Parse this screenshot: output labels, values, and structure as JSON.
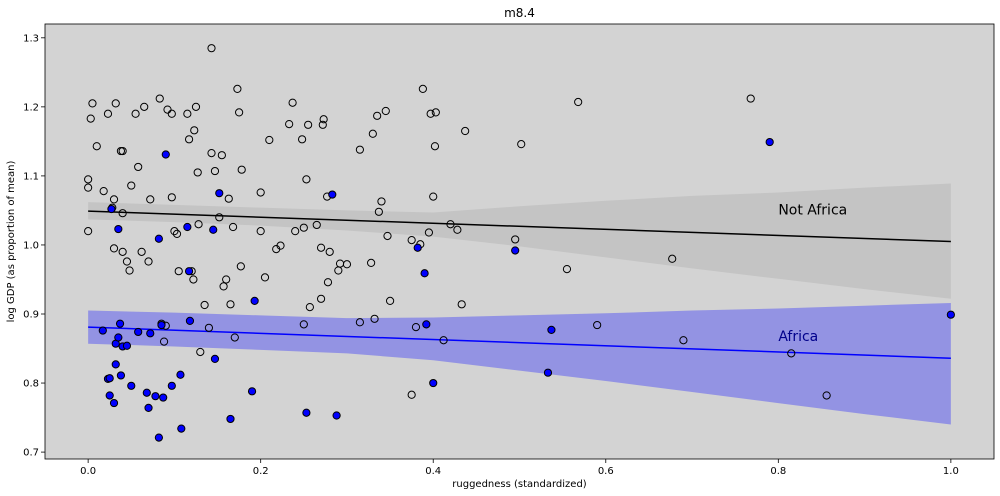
{
  "chart_data": {
    "type": "scatter",
    "title": "m8.4",
    "xlabel": "ruggedness (standardized)",
    "ylabel": "log GDP (as proportion of mean)",
    "xlim": [
      -0.05,
      1.05
    ],
    "ylim": [
      0.69,
      1.32
    ],
    "xticks": [
      "0.0",
      "0.2",
      "0.4",
      "0.6",
      "0.8",
      "1.0"
    ],
    "xtick_values": [
      0.0,
      0.2,
      0.4,
      0.6,
      0.8,
      1.0
    ],
    "yticks": [
      "0.7",
      "0.8",
      "0.9",
      "1.0",
      "1.1",
      "1.2",
      "1.3"
    ],
    "ytick_values": [
      0.7,
      0.8,
      0.9,
      1.0,
      1.1,
      1.2,
      1.3
    ],
    "grid": false,
    "background_color": "#d3d3d3",
    "series": [
      {
        "name": "Not Africa",
        "marker": "open-circle",
        "color": "#000000",
        "line": {
          "x": [
            0.0,
            1.0
          ],
          "y": [
            1.049,
            1.005
          ]
        },
        "band": {
          "x": [
            0.0,
            0.1,
            0.2,
            0.3,
            0.4,
            0.5,
            0.6,
            0.7,
            0.8,
            0.9,
            1.0
          ],
          "lower": [
            1.037,
            1.033,
            1.028,
            1.021,
            1.012,
            0.998,
            0.982,
            0.966,
            0.951,
            0.936,
            0.922
          ],
          "upper": [
            1.062,
            1.058,
            1.054,
            1.05,
            1.047,
            1.056,
            1.064,
            1.071,
            1.076,
            1.083,
            1.089
          ]
        },
        "band_color": "#c4c4c4",
        "points": [
          [
            0.0,
            1.095
          ],
          [
            0.0,
            1.083
          ],
          [
            0.0,
            1.02
          ],
          [
            0.003,
            1.183
          ],
          [
            0.005,
            1.205
          ],
          [
            0.01,
            1.143
          ],
          [
            0.018,
            1.078
          ],
          [
            0.023,
            1.19
          ],
          [
            0.028,
            1.054
          ],
          [
            0.03,
            1.066
          ],
          [
            0.03,
            0.995
          ],
          [
            0.032,
            1.205
          ],
          [
            0.038,
            1.136
          ],
          [
            0.04,
            1.136
          ],
          [
            0.04,
            1.046
          ],
          [
            0.04,
            0.99
          ],
          [
            0.045,
            0.976
          ],
          [
            0.048,
            0.963
          ],
          [
            0.05,
            1.086
          ],
          [
            0.055,
            1.19
          ],
          [
            0.058,
            1.113
          ],
          [
            0.062,
            0.99
          ],
          [
            0.065,
            1.2
          ],
          [
            0.07,
            0.976
          ],
          [
            0.072,
            1.066
          ],
          [
            0.083,
            1.212
          ],
          [
            0.085,
            0.886
          ],
          [
            0.088,
            0.86
          ],
          [
            0.09,
            0.883
          ],
          [
            0.092,
            1.196
          ],
          [
            0.097,
            1.19
          ],
          [
            0.097,
            1.069
          ],
          [
            0.1,
            1.02
          ],
          [
            0.103,
            1.016
          ],
          [
            0.105,
            0.962
          ],
          [
            0.115,
            1.19
          ],
          [
            0.117,
            1.153
          ],
          [
            0.12,
            0.962
          ],
          [
            0.122,
            0.95
          ],
          [
            0.123,
            1.166
          ],
          [
            0.125,
            1.2
          ],
          [
            0.127,
            1.105
          ],
          [
            0.128,
            1.03
          ],
          [
            0.13,
            0.845
          ],
          [
            0.135,
            0.913
          ],
          [
            0.14,
            0.88
          ],
          [
            0.143,
            1.285
          ],
          [
            0.143,
            1.133
          ],
          [
            0.147,
            1.107
          ],
          [
            0.152,
            1.04
          ],
          [
            0.155,
            1.13
          ],
          [
            0.157,
            0.94
          ],
          [
            0.16,
            0.95
          ],
          [
            0.163,
            1.067
          ],
          [
            0.165,
            0.914
          ],
          [
            0.168,
            1.026
          ],
          [
            0.17,
            0.866
          ],
          [
            0.173,
            1.226
          ],
          [
            0.175,
            1.192
          ],
          [
            0.177,
            0.969
          ],
          [
            0.178,
            1.109
          ],
          [
            0.2,
            1.076
          ],
          [
            0.2,
            1.02
          ],
          [
            0.205,
            0.953
          ],
          [
            0.21,
            1.152
          ],
          [
            0.218,
            0.994
          ],
          [
            0.223,
            0.999
          ],
          [
            0.233,
            1.175
          ],
          [
            0.237,
            1.206
          ],
          [
            0.24,
            1.02
          ],
          [
            0.248,
            1.153
          ],
          [
            0.25,
            1.025
          ],
          [
            0.25,
            0.885
          ],
          [
            0.253,
            1.095
          ],
          [
            0.255,
            1.174
          ],
          [
            0.257,
            0.91
          ],
          [
            0.265,
            1.029
          ],
          [
            0.27,
            0.922
          ],
          [
            0.27,
            0.996
          ],
          [
            0.272,
            1.174
          ],
          [
            0.273,
            1.182
          ],
          [
            0.277,
            1.07
          ],
          [
            0.278,
            0.946
          ],
          [
            0.28,
            0.99
          ],
          [
            0.29,
            0.963
          ],
          [
            0.292,
            0.973
          ],
          [
            0.3,
            0.972
          ],
          [
            0.315,
            1.138
          ],
          [
            0.315,
            0.888
          ],
          [
            0.328,
            0.974
          ],
          [
            0.33,
            1.161
          ],
          [
            0.332,
            0.893
          ],
          [
            0.335,
            1.187
          ],
          [
            0.337,
            1.048
          ],
          [
            0.34,
            1.063
          ],
          [
            0.345,
            1.194
          ],
          [
            0.347,
            1.013
          ],
          [
            0.35,
            0.919
          ],
          [
            0.375,
            1.007
          ],
          [
            0.375,
            0.783
          ],
          [
            0.38,
            0.881
          ],
          [
            0.385,
            1.001
          ],
          [
            0.388,
            1.226
          ],
          [
            0.395,
            1.018
          ],
          [
            0.397,
            1.19
          ],
          [
            0.4,
            1.07
          ],
          [
            0.402,
            1.143
          ],
          [
            0.403,
            1.192
          ],
          [
            0.412,
            0.862
          ],
          [
            0.42,
            1.03
          ],
          [
            0.428,
            1.022
          ],
          [
            0.433,
            0.914
          ],
          [
            0.437,
            1.165
          ],
          [
            0.495,
            1.008
          ],
          [
            0.502,
            1.146
          ],
          [
            0.555,
            0.965
          ],
          [
            0.568,
            1.207
          ],
          [
            0.59,
            0.884
          ],
          [
            0.677,
            0.98
          ],
          [
            0.69,
            0.862
          ],
          [
            0.768,
            1.212
          ],
          [
            0.815,
            0.843
          ],
          [
            0.856,
            0.782
          ]
        ]
      },
      {
        "name": "Africa",
        "marker": "filled-circle",
        "color": "#0000ff",
        "line": {
          "x": [
            0.0,
            1.0
          ],
          "y": [
            0.881,
            0.836
          ]
        },
        "band": {
          "x": [
            0.0,
            0.1,
            0.2,
            0.3,
            0.4,
            0.5,
            0.6,
            0.7,
            0.8,
            0.9,
            1.0
          ],
          "lower": [
            0.857,
            0.853,
            0.848,
            0.843,
            0.833,
            0.818,
            0.803,
            0.787,
            0.771,
            0.755,
            0.74
          ],
          "upper": [
            0.905,
            0.902,
            0.898,
            0.894,
            0.895,
            0.898,
            0.901,
            0.905,
            0.908,
            0.912,
            0.916
          ]
        },
        "band_color": "#9393e3",
        "points": [
          [
            0.017,
            0.876
          ],
          [
            0.023,
            0.806
          ],
          [
            0.025,
            0.807
          ],
          [
            0.025,
            0.782
          ],
          [
            0.027,
            1.052
          ],
          [
            0.03,
            0.771
          ],
          [
            0.032,
            0.857
          ],
          [
            0.032,
            0.827
          ],
          [
            0.035,
            1.023
          ],
          [
            0.035,
            0.866
          ],
          [
            0.037,
            0.886
          ],
          [
            0.038,
            0.811
          ],
          [
            0.04,
            0.853
          ],
          [
            0.045,
            0.854
          ],
          [
            0.05,
            0.796
          ],
          [
            0.058,
            0.874
          ],
          [
            0.068,
            0.786
          ],
          [
            0.07,
            0.764
          ],
          [
            0.072,
            0.872
          ],
          [
            0.078,
            0.781
          ],
          [
            0.082,
            1.009
          ],
          [
            0.082,
            0.721
          ],
          [
            0.085,
            0.884
          ],
          [
            0.087,
            0.779
          ],
          [
            0.09,
            1.131
          ],
          [
            0.097,
            0.796
          ],
          [
            0.107,
            0.812
          ],
          [
            0.108,
            0.734
          ],
          [
            0.115,
            1.026
          ],
          [
            0.117,
            0.962
          ],
          [
            0.118,
            0.89
          ],
          [
            0.145,
            1.022
          ],
          [
            0.147,
            0.835
          ],
          [
            0.152,
            1.075
          ],
          [
            0.165,
            0.748
          ],
          [
            0.19,
            0.788
          ],
          [
            0.193,
            0.919
          ],
          [
            0.253,
            0.757
          ],
          [
            0.283,
            1.073
          ],
          [
            0.288,
            0.753
          ],
          [
            0.382,
            0.996
          ],
          [
            0.39,
            0.959
          ],
          [
            0.392,
            0.885
          ],
          [
            0.4,
            0.8
          ],
          [
            0.495,
            0.992
          ],
          [
            0.533,
            0.815
          ],
          [
            0.537,
            0.877
          ],
          [
            0.79,
            1.149
          ],
          [
            1.0,
            0.899
          ]
        ]
      }
    ],
    "annotations": [
      {
        "text": "Not Africa",
        "x": 0.8,
        "y": 1.044,
        "color": "#000000"
      },
      {
        "text": "Africa",
        "x": 0.8,
        "y": 0.861,
        "color": "#00008b"
      }
    ]
  }
}
